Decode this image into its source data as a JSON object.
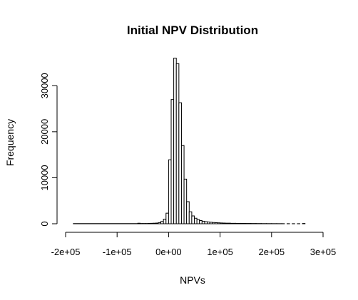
{
  "chart_data": {
    "type": "bar",
    "title": "Initial NPV Distribution",
    "xlabel": "NPVs",
    "ylabel": "Frequency",
    "xlim": [
      -200000,
      300000
    ],
    "ylim": [
      0,
      35000
    ],
    "bin_width": 5000,
    "x_ticks": [
      -200000,
      -100000,
      0,
      100000,
      200000,
      300000
    ],
    "x_tick_labels": [
      "-2e+05",
      "-1e+05",
      "0e+00",
      "1e+05",
      "2e+05",
      "3e+05"
    ],
    "y_ticks": [
      0,
      10000,
      20000,
      30000
    ],
    "y_tick_labels": [
      "0",
      "10000",
      "20000",
      "30000"
    ],
    "bins": [
      {
        "x0": -185000,
        "x1": -60000,
        "count": 40
      },
      {
        "x0": -60000,
        "x1": -55000,
        "count": 120
      },
      {
        "x0": -55000,
        "x1": -50000,
        "count": 60
      },
      {
        "x0": -50000,
        "x1": -45000,
        "count": 60
      },
      {
        "x0": -45000,
        "x1": -40000,
        "count": 60
      },
      {
        "x0": -40000,
        "x1": -35000,
        "count": 80
      },
      {
        "x0": -35000,
        "x1": -30000,
        "count": 100
      },
      {
        "x0": -30000,
        "x1": -25000,
        "count": 120
      },
      {
        "x0": -25000,
        "x1": -20000,
        "count": 150
      },
      {
        "x0": -20000,
        "x1": -15000,
        "count": 250
      },
      {
        "x0": -15000,
        "x1": -10000,
        "count": 500
      },
      {
        "x0": -10000,
        "x1": -5000,
        "count": 1000
      },
      {
        "x0": -5000,
        "x1": 0,
        "count": 2300
      },
      {
        "x0": 0,
        "x1": 5000,
        "count": 13900
      },
      {
        "x0": 5000,
        "x1": 10000,
        "count": 27000
      },
      {
        "x0": 10000,
        "x1": 15000,
        "count": 36000
      },
      {
        "x0": 15000,
        "x1": 20000,
        "count": 34800
      },
      {
        "x0": 20000,
        "x1": 25000,
        "count": 26300
      },
      {
        "x0": 25000,
        "x1": 30000,
        "count": 17000
      },
      {
        "x0": 30000,
        "x1": 35000,
        "count": 9700
      },
      {
        "x0": 35000,
        "x1": 40000,
        "count": 4800
      },
      {
        "x0": 40000,
        "x1": 45000,
        "count": 2600
      },
      {
        "x0": 45000,
        "x1": 50000,
        "count": 1700
      },
      {
        "x0": 50000,
        "x1": 55000,
        "count": 1200
      },
      {
        "x0": 55000,
        "x1": 60000,
        "count": 900
      },
      {
        "x0": 60000,
        "x1": 65000,
        "count": 700
      },
      {
        "x0": 65000,
        "x1": 70000,
        "count": 550
      },
      {
        "x0": 70000,
        "x1": 75000,
        "count": 450
      },
      {
        "x0": 75000,
        "x1": 80000,
        "count": 380
      },
      {
        "x0": 80000,
        "x1": 85000,
        "count": 320
      },
      {
        "x0": 85000,
        "x1": 90000,
        "count": 270
      },
      {
        "x0": 90000,
        "x1": 95000,
        "count": 230
      },
      {
        "x0": 95000,
        "x1": 100000,
        "count": 200
      },
      {
        "x0": 100000,
        "x1": 105000,
        "count": 170
      },
      {
        "x0": 105000,
        "x1": 110000,
        "count": 150
      },
      {
        "x0": 110000,
        "x1": 120000,
        "count": 130
      },
      {
        "x0": 120000,
        "x1": 130000,
        "count": 100
      },
      {
        "x0": 130000,
        "x1": 140000,
        "count": 90
      },
      {
        "x0": 140000,
        "x1": 150000,
        "count": 80
      },
      {
        "x0": 150000,
        "x1": 160000,
        "count": 70
      },
      {
        "x0": 160000,
        "x1": 170000,
        "count": 60
      },
      {
        "x0": 170000,
        "x1": 180000,
        "count": 50
      },
      {
        "x0": 180000,
        "x1": 190000,
        "count": 40
      },
      {
        "x0": 190000,
        "x1": 200000,
        "count": 35
      },
      {
        "x0": 200000,
        "x1": 210000,
        "count": 30
      },
      {
        "x0": 210000,
        "x1": 220000,
        "count": 25
      },
      {
        "x0": 220000,
        "x1": 225000,
        "count": 20
      },
      {
        "x0": 230000,
        "x1": 235000,
        "count": 20
      },
      {
        "x0": 240000,
        "x1": 245000,
        "count": 15
      },
      {
        "x0": 250000,
        "x1": 255000,
        "count": 15
      },
      {
        "x0": 260000,
        "x1": 265000,
        "count": 60
      }
    ]
  }
}
